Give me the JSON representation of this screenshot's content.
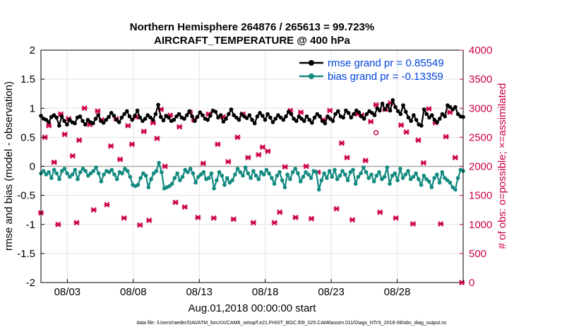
{
  "chart_data": {
    "type": "line",
    "title_line1": "Northern Hemisphere 264876 / 265613 = 99.723%",
    "title_line2": "AIRCRAFT_TEMPERATURE @ 400 hPa",
    "xlabel": "Aug.01,2018 00:00:00 start",
    "ylabel": "rmse and bias (model - observation)",
    "y2label": "# of obs: o=possible; ×=assimilated",
    "footnote": "data file: /Users/raeder/DAI/ATM_forcXX/CAM6_setup/f.e21.FHIST_BGC.f09_025.CAM6assim.011/Diags_NTrS_2018-08/obs_diag_output.nc",
    "xlim": [
      1,
      33
    ],
    "ylim": [
      -2,
      2
    ],
    "y2lim": [
      0,
      4000
    ],
    "xticks": [
      {
        "value": 3,
        "label": "08/03"
      },
      {
        "value": 8,
        "label": "08/08"
      },
      {
        "value": 13,
        "label": "08/13"
      },
      {
        "value": 18,
        "label": "08/18"
      },
      {
        "value": 23,
        "label": "08/23"
      },
      {
        "value": 28,
        "label": "08/28"
      }
    ],
    "yticks": [
      {
        "value": 2,
        "label": "2"
      },
      {
        "value": 1.5,
        "label": "1.5"
      },
      {
        "value": 1,
        "label": "1"
      },
      {
        "value": 0.5,
        "label": "0.5"
      },
      {
        "value": 0,
        "label": "0"
      },
      {
        "value": -0.5,
        "label": "-0.5"
      },
      {
        "value": -1,
        "label": "-1"
      },
      {
        "value": -1.5,
        "label": "-1.5"
      },
      {
        "value": -2,
        "label": "-2"
      }
    ],
    "y2ticks": [
      {
        "value": 4000,
        "label": "4000"
      },
      {
        "value": 3500,
        "label": "3500"
      },
      {
        "value": 3000,
        "label": "3000"
      },
      {
        "value": 2500,
        "label": "2500"
      },
      {
        "value": 2000,
        "label": "2000"
      },
      {
        "value": 1500,
        "label": "1500"
      },
      {
        "value": 1000,
        "label": "1000"
      },
      {
        "value": 500,
        "label": "500"
      },
      {
        "value": 0,
        "label": "0"
      }
    ],
    "series": [
      {
        "name": "rmse grand pr = 0.85549",
        "color": "#000000",
        "values": [
          0.87,
          0.82,
          0.8,
          0.76,
          0.85,
          0.88,
          0.84,
          0.7,
          0.86,
          0.78,
          0.72,
          0.8,
          0.76,
          0.74,
          0.84,
          0.86,
          0.78,
          0.72,
          0.8,
          0.76,
          0.74,
          0.82,
          0.88,
          0.78,
          0.75,
          0.8,
          0.85,
          0.92,
          0.87,
          0.8,
          0.76,
          0.84,
          0.9,
          0.95,
          0.86,
          0.8,
          0.87,
          0.96,
          0.84,
          0.78,
          0.82,
          0.88,
          0.84,
          0.8,
          0.9,
          1.06,
          0.85,
          0.79,
          0.87,
          0.84,
          0.78,
          0.8,
          0.86,
          0.9,
          0.84,
          0.82,
          0.88,
          0.95,
          0.86,
          0.78,
          0.85,
          0.93,
          0.88,
          0.82,
          0.8,
          0.87,
          0.96,
          0.94,
          0.84,
          0.88,
          0.77,
          0.82,
          0.9,
          0.98,
          0.88,
          0.84,
          0.8,
          0.9,
          0.86,
          0.83,
          0.88,
          0.8,
          0.74,
          0.86,
          0.92,
          0.87,
          0.8,
          0.9,
          0.84,
          0.76,
          0.82,
          0.88,
          0.84,
          0.8,
          0.86,
          0.94,
          0.9,
          0.82,
          0.78,
          0.86,
          0.82,
          0.78,
          0.86,
          0.8,
          0.75,
          0.84,
          0.9,
          0.86,
          0.78,
          0.74,
          0.86,
          0.82,
          0.78,
          0.9,
          0.95,
          0.86,
          0.84,
          0.96,
          0.92,
          0.84,
          0.9,
          0.96,
          0.93,
          0.86,
          0.82,
          0.9,
          0.95,
          0.92,
          0.88,
          1.0,
          0.96,
          1.08,
          0.98,
          1.05,
          0.96,
          1.14,
          1.02,
          0.95,
          0.9,
          1.05,
          0.94,
          0.84,
          0.78,
          0.88,
          0.8,
          0.72,
          0.7,
          0.98,
          0.9,
          0.84,
          0.88,
          0.8,
          0.76,
          0.82,
          0.9,
          0.86,
          1.05,
          1.02,
          0.98,
          1.02,
          0.9,
          0.86,
          0.85
        ]
      },
      {
        "name": "bias grand pr = -0.13359",
        "color": "#128a80",
        "values": [
          -0.12,
          -0.08,
          -0.14,
          -0.1,
          -0.2,
          -0.06,
          -0.12,
          -0.22,
          -0.08,
          -0.04,
          -0.12,
          -0.18,
          -0.14,
          -0.06,
          -0.22,
          -0.1,
          -0.04,
          -0.08,
          -0.16,
          -0.12,
          -0.08,
          -0.02,
          -0.12,
          -0.26,
          -0.14,
          -0.08,
          -0.1,
          -0.06,
          -0.14,
          -0.22,
          -0.1,
          -0.12,
          -0.04,
          -0.08,
          -0.18,
          -0.32,
          -0.34,
          -0.32,
          -0.2,
          -0.12,
          -0.16,
          -0.36,
          -0.22,
          -0.12,
          -0.08,
          0.06,
          -0.1,
          -0.38,
          -0.36,
          -0.34,
          -0.3,
          -0.2,
          -0.12,
          -0.24,
          -0.18,
          -0.06,
          -0.1,
          -0.04,
          -0.12,
          -0.28,
          -0.18,
          -0.14,
          -0.1,
          -0.22,
          -0.2,
          -0.12,
          -0.38,
          -0.24,
          -0.1,
          -0.16,
          -0.32,
          -0.2,
          -0.28,
          -0.24,
          -0.14,
          -0.04,
          -0.1,
          -0.16,
          -0.02,
          -0.12,
          -0.2,
          -0.08,
          -0.16,
          -0.22,
          -0.1,
          -0.14,
          -0.06,
          -0.12,
          -0.2,
          -0.3,
          -0.16,
          -0.1,
          -0.24,
          -0.36,
          -0.14,
          -0.22,
          -0.1,
          -0.04,
          -0.12,
          -0.26,
          -0.18,
          -0.1,
          -0.14,
          -0.2,
          -0.08,
          -0.1,
          -0.4,
          -0.24,
          -0.12,
          -0.2,
          -0.08,
          -0.18,
          -0.06,
          -0.22,
          -0.16,
          -0.08,
          -0.14,
          -0.24,
          -0.1,
          -0.06,
          -0.3,
          -0.18,
          -0.12,
          -0.02,
          -0.1,
          -0.2,
          -0.14,
          -0.26,
          -0.16,
          -0.1,
          -0.22,
          -0.18,
          -0.02,
          -0.3,
          -0.16,
          -0.12,
          -0.24,
          -0.04,
          -0.2,
          -0.14,
          -0.08,
          -0.22,
          -0.18,
          -0.12,
          -0.22,
          -0.32,
          -0.16,
          -0.22,
          -0.26,
          -0.36,
          -0.2,
          -0.14,
          -0.28,
          -0.1,
          -0.2,
          -0.24,
          -0.28,
          -0.36,
          -0.4,
          -0.2,
          -0.06,
          -0.08
        ]
      }
    ],
    "obs_assimilated": {
      "name": "assimilated",
      "marker": "x",
      "color": "#cc0044",
      "points": [
        [
          1.0,
          1200
        ],
        [
          1.3,
          2500
        ],
        [
          1.6,
          2700
        ],
        [
          2.0,
          2070
        ],
        [
          2.3,
          1000
        ],
        [
          2.5,
          2900
        ],
        [
          2.8,
          2550
        ],
        [
          3.1,
          2820
        ],
        [
          3.4,
          2180
        ],
        [
          3.7,
          1030
        ],
        [
          3.9,
          2450
        ],
        [
          4.3,
          3000
        ],
        [
          4.7,
          2720
        ],
        [
          5.0,
          1250
        ],
        [
          5.3,
          2950
        ],
        [
          5.6,
          2800
        ],
        [
          6.0,
          1340
        ],
        [
          6.3,
          2350
        ],
        [
          6.7,
          2820
        ],
        [
          7.0,
          2120
        ],
        [
          7.3,
          1110
        ],
        [
          7.6,
          2700
        ],
        [
          7.9,
          2380
        ],
        [
          8.2,
          2850
        ],
        [
          8.5,
          990
        ],
        [
          8.8,
          2600
        ],
        [
          9.2,
          1070
        ],
        [
          9.5,
          2750
        ],
        [
          9.8,
          2480
        ],
        [
          10.1,
          2980
        ],
        [
          10.4,
          2000
        ],
        [
          10.8,
          2880
        ],
        [
          11.2,
          1380
        ],
        [
          11.5,
          2680
        ],
        [
          11.9,
          1300
        ],
        [
          12.3,
          2930
        ],
        [
          12.6,
          2800
        ],
        [
          12.9,
          1120
        ],
        [
          13.3,
          2050
        ],
        [
          13.7,
          2900
        ],
        [
          14.1,
          1110
        ],
        [
          14.4,
          2380
        ],
        [
          14.8,
          2850
        ],
        [
          15.2,
          2080
        ],
        [
          15.6,
          1090
        ],
        [
          15.9,
          2500
        ],
        [
          16.3,
          2900
        ],
        [
          16.7,
          2150
        ],
        [
          17.1,
          1030
        ],
        [
          17.5,
          2200
        ],
        [
          17.8,
          2330
        ],
        [
          18.2,
          2260
        ],
        [
          18.7,
          1030
        ],
        [
          19.1,
          1210
        ],
        [
          19.5,
          1990
        ],
        [
          19.9,
          2960
        ],
        [
          20.3,
          1120
        ],
        [
          20.7,
          2930
        ],
        [
          21.1,
          2000
        ],
        [
          21.5,
          1100
        ],
        [
          22.0,
          1900
        ],
        [
          22.4,
          2800
        ],
        [
          22.9,
          2960
        ],
        [
          23.4,
          1270
        ],
        [
          23.8,
          2400
        ],
        [
          24.2,
          2150
        ],
        [
          24.6,
          1080
        ],
        [
          25.0,
          2900
        ],
        [
          25.3,
          2880
        ],
        [
          25.6,
          2100
        ],
        [
          26.0,
          2770
        ],
        [
          26.4,
          3060
        ],
        [
          26.7,
          1210
        ],
        [
          27.1,
          2980
        ],
        [
          27.5,
          3090
        ],
        [
          27.9,
          1110
        ],
        [
          28.3,
          2710
        ],
        [
          28.7,
          2590
        ],
        [
          29.2,
          1010
        ],
        [
          29.6,
          2450
        ],
        [
          30.0,
          2060
        ],
        [
          30.4,
          2990
        ],
        [
          30.9,
          2750
        ],
        [
          31.3,
          1010
        ],
        [
          31.7,
          2510
        ],
        [
          32.0,
          2930
        ],
        [
          32.4,
          2150
        ],
        [
          32.9,
          0
        ]
      ]
    },
    "obs_possible": {
      "name": "possible",
      "marker": "o",
      "color": "#cc0044",
      "points": [
        [
          26.4,
          2580
        ]
      ]
    },
    "zero_line": 0,
    "grid": true
  }
}
